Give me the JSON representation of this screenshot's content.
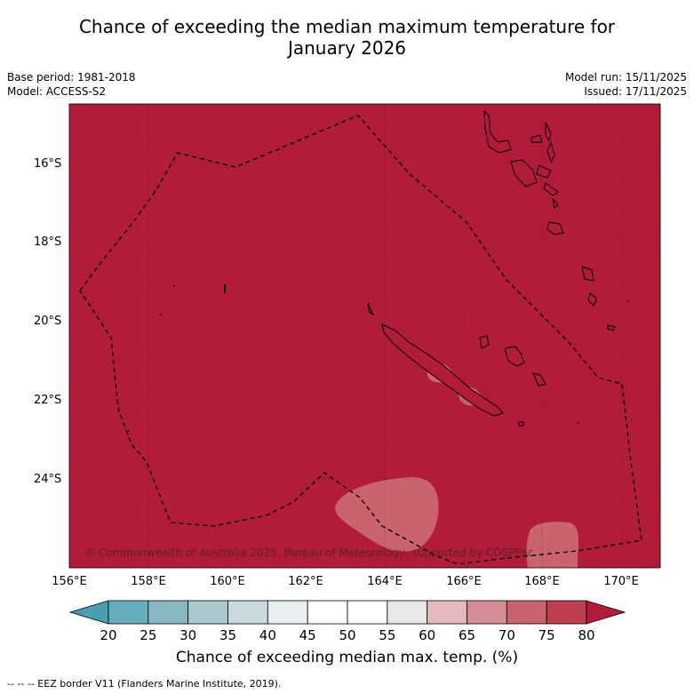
{
  "title_line1": "Chance of exceeding the median maximum temperature for",
  "title_line2": "January 2026",
  "base_period": "Base period: 1981-2018",
  "model": "Model: ACCESS-S2",
  "model_run": "Model run: 15/11/2025",
  "issued": "Issued: 17/11/2025",
  "copyright": "© Commonwealth of Australia 2025, Bureau of Meteorology, supported by COSPPac",
  "lat_labels": [
    "16°S",
    "18°S",
    "20°S",
    "22°S",
    "24°S"
  ],
  "lon_labels": [
    "156°E",
    "158°E",
    "160°E",
    "162°E",
    "164°E",
    "166°E",
    "168°E",
    "170°E"
  ],
  "colorbar": {
    "ticks": [
      "20",
      "25",
      "30",
      "35",
      "40",
      "45",
      "50",
      "55",
      "60",
      "65",
      "70",
      "75",
      "80"
    ],
    "colors": [
      "#4aa0b0",
      "#67aebd",
      "#8ab8c2",
      "#a9c9cd",
      "#c8dadd",
      "#e9eff0",
      "#ffffff",
      "#ffffff",
      "#e8e8e8",
      "#e3b9bd",
      "#d58c95",
      "#c9646f",
      "#be3f4f",
      "#b01c3a"
    ],
    "title": "Chance of exceeding median max. temp. (%)"
  },
  "footer": "--  --  -- EEZ border V11 (Flanders Marine Institute, 2019).",
  "colors": {
    "main_fill": "#b01c3a",
    "light_patch": "#c9646f",
    "lighter_patch": "#d58c95"
  }
}
